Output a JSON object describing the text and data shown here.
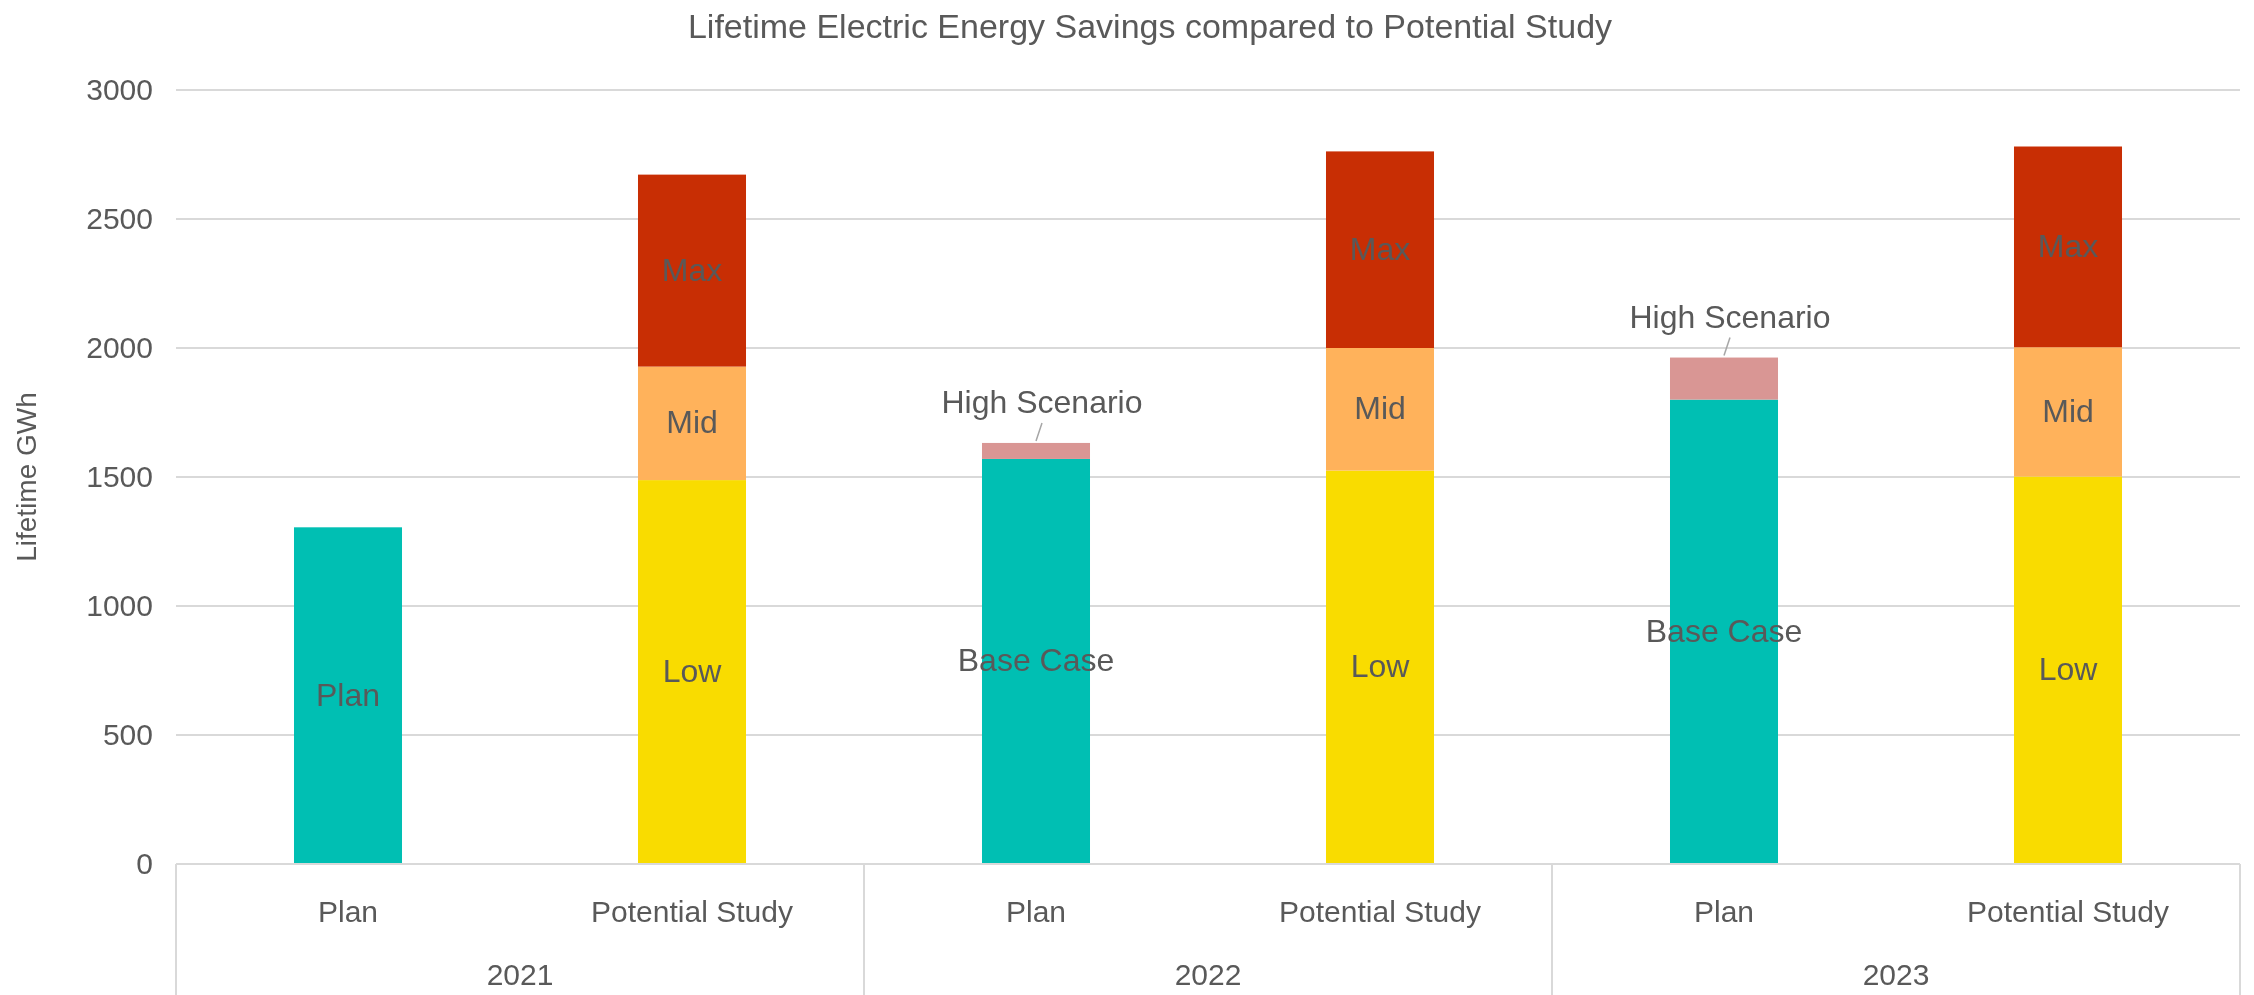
{
  "chart_data": {
    "type": "bar",
    "title": "Lifetime Electric Energy Savings compared to Potential Study",
    "ylabel": "Lifetime GWh",
    "categories": [
      "Plan",
      "Potential Study",
      "Plan",
      "Potential Study",
      "Plan",
      "Potential Study"
    ],
    "annotations": [
      "2021",
      "2022",
      "2023"
    ],
    "stacked": true,
    "grid": "y",
    "ylim": [
      0,
      3000
    ],
    "yticks": [
      0,
      500,
      1000,
      1500,
      2000,
      2500,
      3000
    ],
    "series": [
      {
        "color": "#00bfb3",
        "values": [
          1305,
          null,
          1570,
          null,
          1800,
          null
        ],
        "value_labels": [
          "Plan",
          null,
          "Base Case",
          null,
          "Base Case",
          null
        ]
      },
      {
        "color": "#d99694",
        "values": [
          null,
          null,
          62,
          null,
          163,
          null
        ],
        "value_labels": [
          null,
          null,
          "High Scenario",
          null,
          "High Scenario",
          null
        ]
      },
      {
        "color": "#f9dc00",
        "values": [
          null,
          1488,
          null,
          1525,
          null,
          1502
        ],
        "value_labels": [
          null,
          "Low",
          null,
          "Low",
          null,
          "Low"
        ]
      },
      {
        "color": "#ffb25b",
        "values": [
          null,
          440,
          null,
          475,
          null,
          501
        ],
        "value_labels": [
          null,
          "Mid",
          null,
          "Mid",
          null,
          "Mid"
        ]
      },
      {
        "color": "#c82e04",
        "values": [
          null,
          744,
          null,
          762,
          null,
          778
        ],
        "value_labels": [
          null,
          "Max",
          null,
          "Max",
          null,
          "Max"
        ]
      }
    ]
  }
}
